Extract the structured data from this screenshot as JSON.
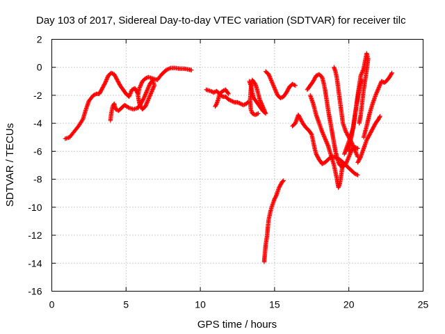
{
  "chart_data": {
    "type": "scatter",
    "title": "Day 103 of 2017, Sidereal Day-to-day VTEC variation (SDTVAR) for receiver tilc",
    "xlabel": "GPS time / hours",
    "ylabel": "SDTVAR / TECUs",
    "xlim": [
      0,
      25
    ],
    "ylim": [
      -16,
      2
    ],
    "xticks": [
      0,
      5,
      10,
      15,
      20,
      25
    ],
    "yticks": [
      2,
      0,
      -2,
      -4,
      -6,
      -8,
      -10,
      -12,
      -14,
      -16
    ],
    "grid": true,
    "marker": "plus",
    "color": "#ff0000",
    "series": [
      {
        "segments": [
          [
            [
              0.9,
              -5.1
            ],
            [
              1.2,
              -5.0
            ],
            [
              1.5,
              -4.6
            ],
            [
              1.8,
              -4.2
            ],
            [
              2.1,
              -3.7
            ],
            [
              2.3,
              -3.0
            ],
            [
              2.5,
              -2.4
            ],
            [
              2.8,
              -2.0
            ],
            [
              3.0,
              -1.9
            ],
            [
              3.2,
              -1.9
            ],
            [
              3.4,
              -1.5
            ],
            [
              3.6,
              -1.1
            ],
            [
              3.8,
              -0.6
            ],
            [
              4.0,
              -0.4
            ],
            [
              4.2,
              -0.5
            ],
            [
              4.4,
              -0.9
            ],
            [
              4.6,
              -1.3
            ],
            [
              4.8,
              -1.6
            ],
            [
              5.0,
              -1.9
            ],
            [
              5.2,
              -2.1
            ],
            [
              5.4,
              -1.6
            ],
            [
              5.6,
              -1.5
            ],
            [
              5.8,
              -1.9
            ]
          ],
          [
            [
              3.95,
              -3.8
            ],
            [
              4.0,
              -3.3
            ],
            [
              4.1,
              -2.8
            ],
            [
              4.2,
              -2.6
            ],
            [
              4.3,
              -3.0
            ],
            [
              4.5,
              -3.1
            ],
            [
              4.7,
              -2.9
            ],
            [
              4.9,
              -2.7
            ],
            [
              5.2,
              -2.9
            ],
            [
              5.5,
              -3.0
            ],
            [
              5.8,
              -2.9
            ],
            [
              6.0,
              -2.6
            ],
            [
              6.2,
              -2.2
            ],
            [
              6.4,
              -1.7
            ],
            [
              6.6,
              -1.2
            ],
            [
              6.8,
              -0.9
            ],
            [
              6.9,
              -1.3
            ],
            [
              6.7,
              -1.8
            ],
            [
              6.5,
              -2.3
            ],
            [
              6.3,
              -2.8
            ],
            [
              6.1,
              -3.0
            ],
            [
              5.9,
              -2.6
            ],
            [
              5.8,
              -2.0
            ],
            [
              5.9,
              -1.5
            ],
            [
              6.1,
              -1.0
            ],
            [
              6.3,
              -0.8
            ],
            [
              6.5,
              -0.7
            ],
            [
              6.8,
              -0.8
            ],
            [
              7.1,
              -0.9
            ],
            [
              7.4,
              -0.5
            ],
            [
              7.7,
              -0.2
            ],
            [
              8.0,
              -0.05
            ],
            [
              8.3,
              -0.05
            ],
            [
              8.6,
              -0.1
            ],
            [
              8.9,
              -0.1
            ],
            [
              9.2,
              -0.15
            ],
            [
              9.4,
              -0.2
            ]
          ],
          [
            [
              10.4,
              -1.6
            ],
            [
              10.7,
              -1.7
            ],
            [
              10.9,
              -1.8
            ],
            [
              11.1,
              -1.7
            ],
            [
              11.3,
              -1.9
            ],
            [
              11.5,
              -2.1
            ],
            [
              11.7,
              -2.1
            ],
            [
              11.9,
              -2.3
            ],
            [
              12.1,
              -2.4
            ],
            [
              12.3,
              -2.5
            ],
            [
              12.5,
              -2.5
            ],
            [
              12.7,
              -2.6
            ],
            [
              12.9,
              -2.7
            ],
            [
              13.1,
              -2.6
            ],
            [
              13.2,
              -2.5
            ]
          ],
          [
            [
              11.0,
              -2.8
            ],
            [
              11.1,
              -2.6
            ],
            [
              11.2,
              -2.3
            ],
            [
              11.3,
              -1.9
            ],
            [
              11.5,
              -1.7
            ],
            [
              11.7,
              -1.6
            ],
            [
              11.9,
              -1.9
            ]
          ],
          [
            [
              13.3,
              -1.0
            ],
            [
              13.4,
              -1.3
            ],
            [
              13.5,
              -1.8
            ],
            [
              13.6,
              -2.2
            ],
            [
              13.8,
              -2.5
            ],
            [
              14.0,
              -2.8
            ],
            [
              14.2,
              -3.1
            ],
            [
              14.4,
              -3.3
            ],
            [
              14.2,
              -2.8
            ],
            [
              14.0,
              -2.3
            ],
            [
              13.9,
              -1.9
            ],
            [
              13.8,
              -1.5
            ],
            [
              13.7,
              -1.2
            ],
            [
              13.5,
              -0.9
            ],
            [
              13.4,
              -1.6
            ],
            [
              13.35,
              -2.4
            ],
            [
              13.4,
              -3.0
            ],
            [
              13.5,
              -3.3
            ],
            [
              13.7,
              -3.4
            ],
            [
              13.9,
              -3.3
            ]
          ],
          [
            [
              14.4,
              -0.3
            ],
            [
              14.6,
              -0.5
            ],
            [
              14.8,
              -1.0
            ],
            [
              15.0,
              -1.5
            ],
            [
              15.2,
              -2.0
            ],
            [
              15.4,
              -2.2
            ],
            [
              15.6,
              -2.1
            ],
            [
              15.8,
              -1.8
            ],
            [
              16.0,
              -1.4
            ],
            [
              16.2,
              -1.2
            ],
            [
              16.4,
              -1.3
            ]
          ],
          [
            [
              14.3,
              -13.9
            ],
            [
              14.35,
              -13.3
            ],
            [
              14.4,
              -12.7
            ],
            [
              14.5,
              -12.0
            ],
            [
              14.55,
              -11.4
            ],
            [
              14.6,
              -10.9
            ],
            [
              14.7,
              -10.4
            ],
            [
              14.8,
              -10.0
            ],
            [
              14.9,
              -9.7
            ],
            [
              15.0,
              -9.4
            ],
            [
              15.1,
              -9.2
            ],
            [
              15.2,
              -8.9
            ],
            [
              15.3,
              -8.6
            ],
            [
              15.4,
              -8.4
            ],
            [
              15.5,
              -8.2
            ],
            [
              15.6,
              -8.1
            ]
          ],
          [
            [
              16.2,
              -4.2
            ],
            [
              16.4,
              -4.0
            ],
            [
              16.5,
              -3.7
            ],
            [
              16.6,
              -3.4
            ],
            [
              16.7,
              -3.6
            ],
            [
              16.9,
              -4.0
            ],
            [
              17.1,
              -4.3
            ],
            [
              17.3,
              -4.5
            ],
            [
              17.5,
              -4.8
            ],
            [
              17.6,
              -5.3
            ],
            [
              17.7,
              -5.8
            ],
            [
              17.8,
              -6.2
            ],
            [
              18.0,
              -6.6
            ],
            [
              18.2,
              -6.9
            ],
            [
              18.4,
              -6.8
            ],
            [
              18.6,
              -6.6
            ],
            [
              18.8,
              -6.4
            ],
            [
              19.0,
              -6.4
            ],
            [
              19.2,
              -6.5
            ],
            [
              19.4,
              -6.6
            ],
            [
              19.6,
              -6.8
            ],
            [
              19.8,
              -7.0
            ],
            [
              20.0,
              -7.2
            ],
            [
              20.2,
              -7.4
            ],
            [
              20.4,
              -7.6
            ],
            [
              20.6,
              -7.7
            ]
          ],
          [
            [
              17.2,
              -1.6
            ],
            [
              17.4,
              -1.3
            ],
            [
              17.6,
              -1.0
            ],
            [
              17.8,
              -0.6
            ],
            [
              18.0,
              -0.5
            ],
            [
              18.2,
              -0.7
            ],
            [
              18.3,
              -1.1
            ],
            [
              18.4,
              -1.6
            ],
            [
              18.5,
              -2.3
            ],
            [
              18.6,
              -3.0
            ],
            [
              18.7,
              -3.6
            ],
            [
              18.8,
              -4.2
            ],
            [
              18.9,
              -4.8
            ],
            [
              19.0,
              -5.4
            ],
            [
              19.1,
              -6.0
            ],
            [
              19.2,
              -6.4
            ],
            [
              19.3,
              -6.8
            ],
            [
              19.4,
              -7.0
            ],
            [
              19.6,
              -7.1
            ],
            [
              19.8,
              -6.9
            ],
            [
              20.0,
              -6.4
            ],
            [
              20.2,
              -5.9
            ],
            [
              20.4,
              -5.7
            ],
            [
              20.6,
              -5.8
            ]
          ],
          [
            [
              17.4,
              -2.0
            ],
            [
              17.6,
              -2.6
            ],
            [
              17.8,
              -3.4
            ],
            [
              18.0,
              -4.0
            ],
            [
              18.2,
              -4.6
            ],
            [
              18.4,
              -5.1
            ],
            [
              18.6,
              -5.6
            ],
            [
              18.8,
              -6.3
            ],
            [
              19.0,
              -7.0
            ],
            [
              19.1,
              -7.5
            ],
            [
              19.2,
              -8.0
            ],
            [
              19.3,
              -8.6
            ],
            [
              19.4,
              -8.3
            ],
            [
              19.5,
              -7.6
            ],
            [
              19.6,
              -6.8
            ]
          ],
          [
            [
              19.0,
              0.0
            ],
            [
              19.1,
              -0.3
            ],
            [
              19.2,
              -0.8
            ],
            [
              19.3,
              -1.6
            ],
            [
              19.4,
              -2.4
            ],
            [
              19.5,
              -3.2
            ],
            [
              19.6,
              -4.0
            ],
            [
              19.8,
              -4.6
            ],
            [
              20.0,
              -5.0
            ],
            [
              20.2,
              -5.4
            ],
            [
              20.4,
              -5.9
            ],
            [
              20.6,
              -6.4
            ]
          ],
          [
            [
              19.7,
              -6.2
            ],
            [
              19.9,
              -5.6
            ],
            [
              20.1,
              -5.0
            ],
            [
              20.3,
              -4.3
            ],
            [
              20.4,
              -3.6
            ],
            [
              20.5,
              -2.8
            ],
            [
              20.6,
              -2.0
            ],
            [
              20.7,
              -1.3
            ],
            [
              20.8,
              -0.6
            ],
            [
              21.0,
              -0.1
            ],
            [
              21.1,
              0.5
            ],
            [
              21.2,
              1.0
            ],
            [
              21.3,
              0.6
            ],
            [
              21.2,
              -0.2
            ],
            [
              21.1,
              -0.9
            ],
            [
              21.0,
              -1.6
            ],
            [
              20.9,
              -2.5
            ],
            [
              20.8,
              -3.4
            ],
            [
              20.7,
              -4.0
            ]
          ],
          [
            [
              20.0,
              -6.0
            ],
            [
              20.1,
              -5.4
            ],
            [
              20.2,
              -4.8
            ],
            [
              20.3,
              -4.2
            ],
            [
              20.4,
              -3.5
            ],
            [
              20.5,
              -2.8
            ],
            [
              20.6,
              -2.2
            ],
            [
              20.7,
              -1.6
            ],
            [
              20.8,
              -1.2
            ],
            [
              20.9,
              -0.9
            ]
          ],
          [
            [
              20.6,
              -6.8
            ],
            [
              20.8,
              -6.4
            ],
            [
              21.0,
              -5.8
            ],
            [
              21.2,
              -5.2
            ],
            [
              21.4,
              -4.8
            ],
            [
              21.6,
              -4.4
            ],
            [
              21.8,
              -4.0
            ],
            [
              22.0,
              -3.7
            ],
            [
              22.1,
              -3.5
            ]
          ],
          [
            [
              21.0,
              -5.0
            ],
            [
              21.2,
              -4.2
            ],
            [
              21.4,
              -3.3
            ],
            [
              21.6,
              -2.6
            ],
            [
              21.8,
              -2.0
            ],
            [
              22.0,
              -1.5
            ],
            [
              22.2,
              -1.0
            ],
            [
              22.4,
              -1.1
            ],
            [
              22.6,
              -0.9
            ],
            [
              22.8,
              -0.6
            ],
            [
              22.9,
              -0.4
            ]
          ]
        ]
      }
    ]
  }
}
